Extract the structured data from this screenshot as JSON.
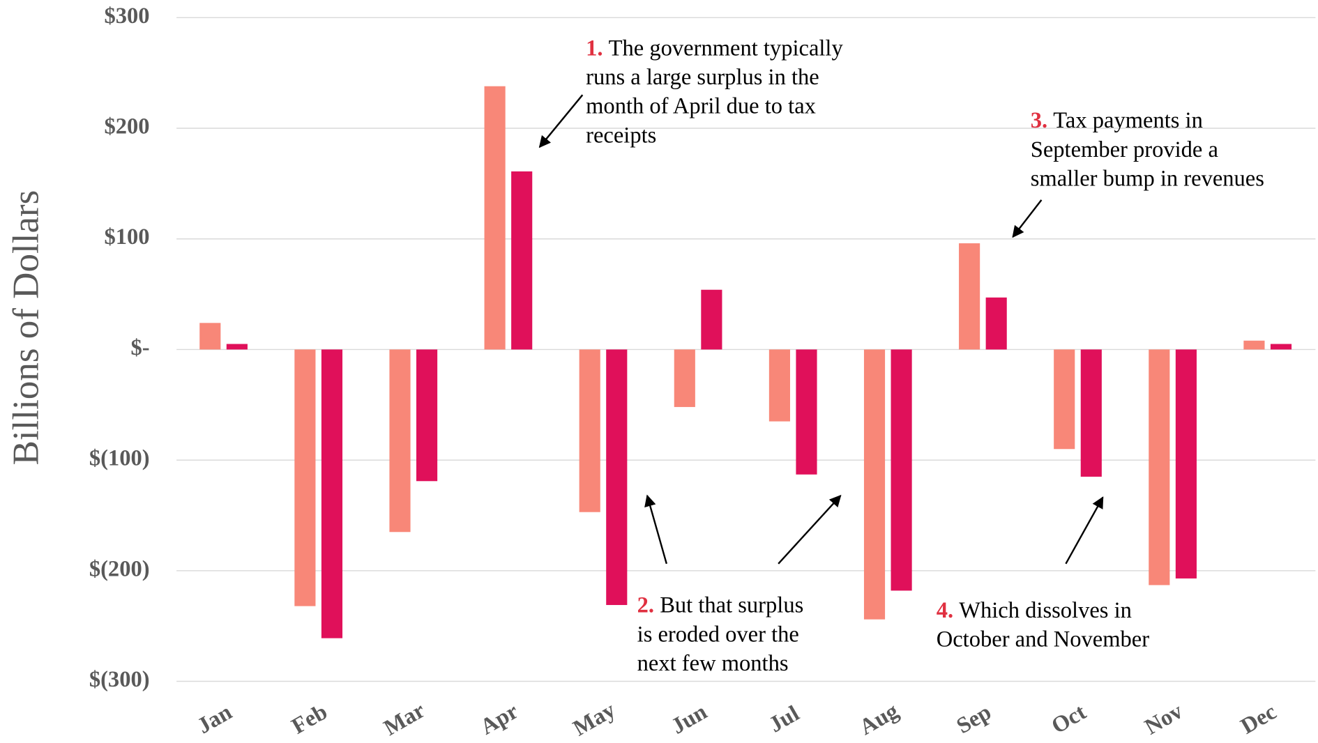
{
  "chart_data": {
    "type": "bar",
    "y_axis_label": "Billions of Dollars",
    "categories": [
      "Jan",
      "Feb",
      "Mar",
      "Apr",
      "May",
      "Jun",
      "Jul",
      "Aug",
      "Sep",
      "Oct",
      "Nov",
      "Dec"
    ],
    "series": [
      {
        "color": "#f88778",
        "values": [
          24,
          -232,
          -165,
          238,
          -147,
          -52,
          -65,
          -244,
          96,
          -90,
          -213,
          8
        ]
      },
      {
        "color": "#e0105a",
        "values": [
          5,
          -261,
          -119,
          161,
          -231,
          54,
          -113,
          -218,
          47,
          -115,
          -207,
          5
        ]
      }
    ],
    "ylim": [
      -300,
      300
    ],
    "yticks": [
      {
        "value": 300,
        "label": "$300"
      },
      {
        "value": 200,
        "label": "$200"
      },
      {
        "value": 100,
        "label": "$100"
      },
      {
        "value": 0,
        "label": "$-"
      },
      {
        "value": -100,
        "label": "$(100)"
      },
      {
        "value": -200,
        "label": "$(200)"
      },
      {
        "value": -300,
        "label": "$(300)"
      }
    ],
    "grid": true,
    "annotations": [
      {
        "number": "1.",
        "lines": [
          "The government typically",
          "runs a large surplus in the",
          "month of April due to tax",
          "receipts"
        ]
      },
      {
        "number": "2.",
        "lines": [
          "But that surplus",
          "is eroded over the",
          "next few months"
        ]
      },
      {
        "number": "3.",
        "lines": [
          "Tax payments in",
          "September provide a",
          "smaller bump in revenues"
        ]
      },
      {
        "number": "4.",
        "lines": [
          "Which dissolves in",
          "October and November"
        ]
      }
    ]
  }
}
